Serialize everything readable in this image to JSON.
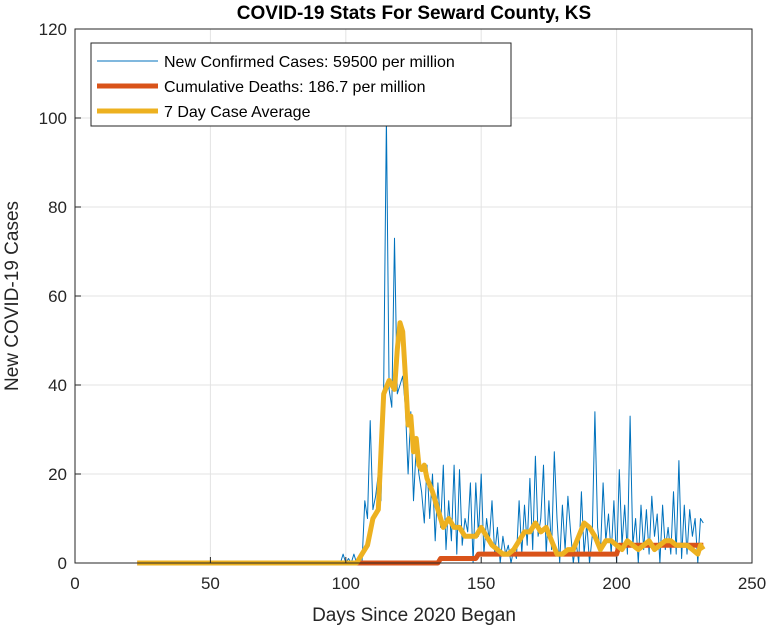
{
  "chart_data": {
    "type": "line",
    "title": "COVID-19 Stats For Seward County, KS",
    "xlabel": "Days Since 2020 Began",
    "ylabel": "New COVID-19 Cases",
    "xlim": [
      0,
      250
    ],
    "ylim": [
      0,
      120
    ],
    "xticks": [
      0,
      50,
      100,
      150,
      200,
      250
    ],
    "yticks": [
      0,
      20,
      40,
      60,
      80,
      100,
      120
    ],
    "xtick_labels": [
      "0",
      "50",
      "100",
      "150",
      "200",
      "250"
    ],
    "ytick_labels": [
      "0",
      "20",
      "40",
      "60",
      "80",
      "100",
      "120"
    ],
    "grid": true,
    "legend_position": "top-left",
    "series": [
      {
        "name": "New Confirmed Cases: 59500 per million",
        "color": "#0072BD",
        "x": [
          23,
          30,
          40,
          50,
          60,
          70,
          80,
          90,
          98,
          99,
          100,
          101,
          102,
          103,
          104,
          105,
          106,
          107,
          108,
          109,
          110,
          111,
          112,
          113,
          114,
          115,
          116,
          117,
          118,
          119,
          120,
          121,
          122,
          123,
          124,
          125,
          126,
          127,
          128,
          129,
          130,
          131,
          132,
          133,
          134,
          135,
          136,
          137,
          138,
          139,
          140,
          141,
          142,
          143,
          144,
          145,
          146,
          147,
          148,
          149,
          150,
          151,
          152,
          153,
          154,
          155,
          156,
          157,
          158,
          159,
          160,
          161,
          162,
          163,
          164,
          165,
          166,
          167,
          168,
          169,
          170,
          171,
          172,
          173,
          174,
          175,
          176,
          177,
          178,
          179,
          180,
          181,
          182,
          183,
          184,
          185,
          186,
          187,
          188,
          189,
          190,
          191,
          192,
          193,
          194,
          195,
          196,
          197,
          198,
          199,
          200,
          201,
          202,
          203,
          204,
          205,
          206,
          207,
          208,
          209,
          210,
          211,
          212,
          213,
          214,
          215,
          216,
          217,
          218,
          219,
          220,
          221,
          222,
          223,
          224,
          225,
          226,
          227,
          228,
          229,
          230,
          231,
          232
        ],
        "values": [
          0,
          0,
          0,
          0,
          0,
          0,
          0,
          0,
          0,
          2,
          0,
          1,
          0,
          2,
          0,
          0,
          0,
          14,
          10,
          32,
          12,
          15,
          20,
          14,
          40,
          100,
          39,
          35,
          73,
          38,
          40,
          42,
          35,
          20,
          34,
          14,
          26,
          20,
          16,
          9,
          22,
          10,
          20,
          5,
          18,
          8,
          22,
          3,
          14,
          5,
          22,
          2,
          21,
          4,
          10,
          7,
          18,
          0,
          18,
          6,
          20,
          2,
          10,
          5,
          14,
          2,
          8,
          0,
          6,
          2,
          4,
          0,
          3,
          1,
          14,
          2,
          13,
          4,
          19,
          3,
          24,
          6,
          10,
          22,
          2,
          14,
          3,
          25,
          10,
          0,
          13,
          3,
          15,
          7,
          0,
          5,
          0,
          16,
          2,
          9,
          0,
          6,
          34,
          8,
          2,
          18,
          5,
          11,
          2,
          14,
          0,
          21,
          4,
          13,
          2,
          33,
          4,
          10,
          0,
          13,
          3,
          12,
          2,
          15,
          6,
          11,
          0,
          13,
          3,
          8,
          2,
          16,
          2,
          23,
          1,
          13,
          2,
          12,
          6,
          10,
          0,
          10,
          9
        ],
        "line_width": 1
      },
      {
        "name": "Cumulative Deaths: 186.7 per million",
        "color": "#D95319",
        "x": [
          23,
          134,
          135,
          148,
          149,
          200,
          201,
          232
        ],
        "values": [
          0,
          0,
          1,
          1,
          2,
          2,
          4,
          4
        ],
        "line_width": 5
      },
      {
        "name": "7 Day Case Average",
        "color": "#EDB120",
        "x": [
          23,
          100,
          104,
          106,
          108,
          110,
          112,
          114,
          116,
          118,
          119,
          120,
          121,
          122,
          123,
          124,
          125,
          126,
          127,
          128,
          129,
          130,
          132,
          134,
          136,
          138,
          140,
          142,
          144,
          146,
          148,
          150,
          152,
          154,
          156,
          158,
          160,
          162,
          164,
          166,
          168,
          170,
          172,
          174,
          176,
          178,
          180,
          182,
          184,
          186,
          188,
          190,
          192,
          194,
          196,
          198,
          200,
          202,
          204,
          206,
          208,
          210,
          212,
          214,
          216,
          218,
          220,
          222,
          224,
          226,
          228,
          230,
          231,
          232
        ],
        "values": [
          0,
          0,
          0,
          2,
          4,
          10,
          12,
          38,
          41,
          39,
          48,
          54,
          52,
          42,
          31,
          33,
          25,
          28,
          22,
          21,
          22,
          19,
          16,
          12,
          8,
          10,
          8,
          8,
          6,
          6,
          6,
          8,
          6,
          4,
          3,
          2,
          2,
          3,
          5,
          7,
          7,
          9,
          7,
          8,
          5,
          2,
          2,
          3,
          3,
          6,
          9,
          8,
          6,
          3,
          5,
          5,
          4,
          3,
          5,
          4,
          3,
          4,
          5,
          3,
          4,
          5,
          5,
          4,
          4,
          4,
          3,
          2,
          4,
          3
        ],
        "line_width": 5
      }
    ]
  }
}
